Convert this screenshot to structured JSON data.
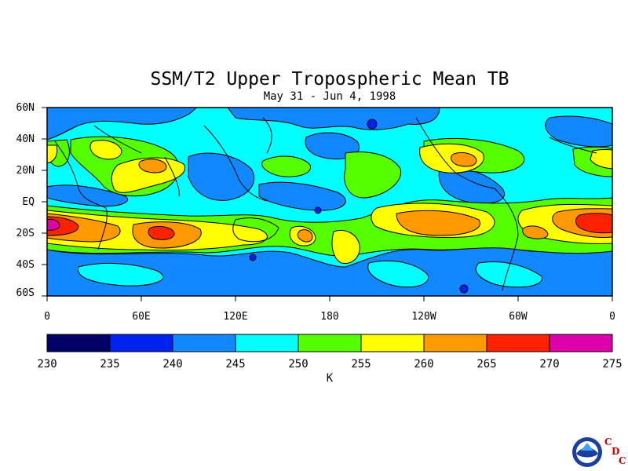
{
  "title": "SSM/T2 Upper Tropospheric Mean TB",
  "subtitle": "May 31 - Jun 4, 1998",
  "lat_labels": [
    "60N",
    "40N",
    "20N",
    "EQ",
    "20S",
    "40S",
    "60S"
  ],
  "lon_labels": [
    "0",
    "60E",
    "120E",
    "180",
    "120W",
    "60W",
    "0"
  ],
  "colorbar": {
    "ticks": [
      "230",
      "235",
      "240",
      "245",
      "250",
      "255",
      "260",
      "265",
      "270",
      "275"
    ],
    "colors": [
      "#000066",
      "#0022ee",
      "#1188ff",
      "#00ffff",
      "#55ff00",
      "#ffff00",
      "#ff9900",
      "#ff2200",
      "#dd00aa"
    ],
    "unit": "K"
  },
  "logo": {
    "c1": "C",
    "c2": "D",
    "c3": "C"
  }
}
